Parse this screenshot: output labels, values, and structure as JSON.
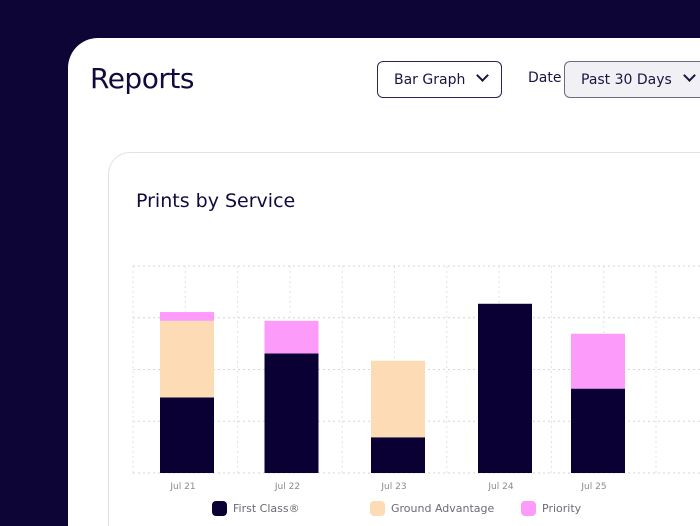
{
  "header": {
    "title": "Reports",
    "chart_type_select": "Bar Graph",
    "date_label": "Date",
    "date_select": "Past 30 Days"
  },
  "colors": {
    "background": "#0d0535",
    "first_class": "#0a0033",
    "ground_advantage": "#fddcb5",
    "priority": "#fd9bfa"
  },
  "chart_data": {
    "type": "bar",
    "stacked": true,
    "title": "Prints  by Service",
    "categories": [
      "Jul 21",
      "Jul 22",
      "Jul 23",
      "Jul 24",
      "Jul 25"
    ],
    "series": [
      {
        "name": "First Class®",
        "color": "#0a0033",
        "values": [
          1.46,
          2.31,
          0.69,
          3.27,
          1.63
        ]
      },
      {
        "name": "Ground Advantage",
        "color": "#fddcb5",
        "values": [
          1.48,
          0,
          1.48,
          0,
          0
        ]
      },
      {
        "name": "Priority",
        "color": "#fd9bfa",
        "values": [
          0.17,
          0.63,
          0,
          0,
          1.06
        ]
      }
    ],
    "ylim": [
      0,
      4
    ],
    "grid": true,
    "legend": "bottom",
    "y_tick_labels_shown": false
  }
}
